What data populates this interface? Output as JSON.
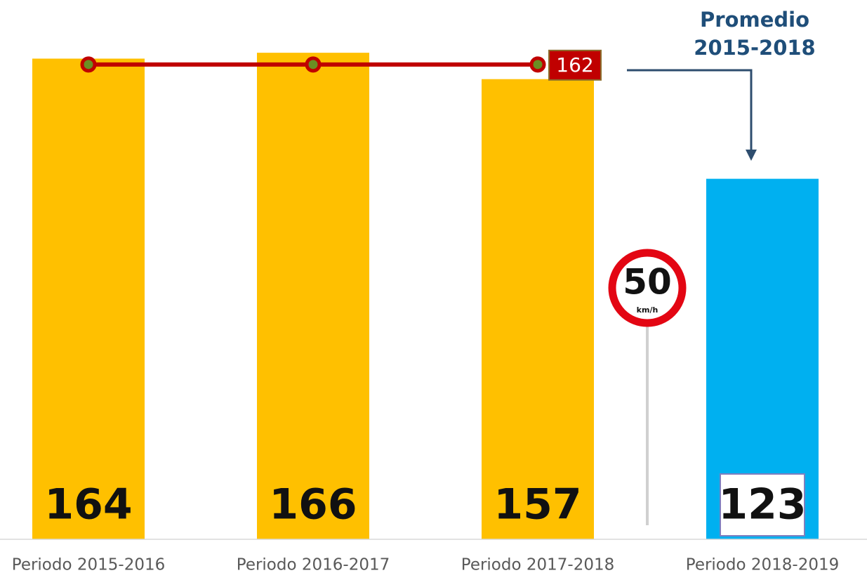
{
  "chart_data": {
    "type": "bar",
    "categories": [
      "Periodo 2015-2016",
      "Periodo 2016-2017",
      "Periodo 2017-2018",
      "Periodo 2018-2019"
    ],
    "values": [
      164,
      166,
      157,
      123
    ],
    "colors": [
      "#ffc000",
      "#ffc000",
      "#ffc000",
      "#00b0f0"
    ],
    "ylim": [
      0,
      184
    ],
    "average_line": {
      "values": [
        162,
        162,
        162
      ],
      "color": "#c00000"
    },
    "annotation": [
      "Promedio",
      "2015-2018"
    ],
    "sign": {
      "number": "50",
      "unit": "km/h"
    }
  }
}
